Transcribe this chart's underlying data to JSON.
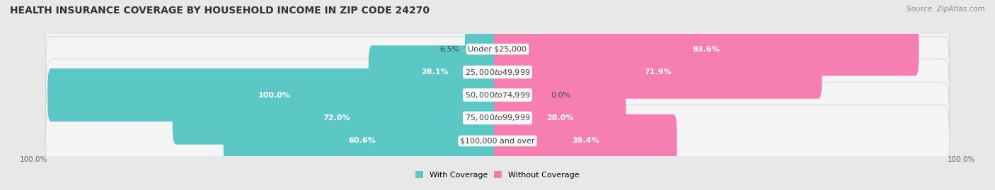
{
  "title": "HEALTH INSURANCE COVERAGE BY HOUSEHOLD INCOME IN ZIP CODE 24270",
  "source": "Source: ZipAtlas.com",
  "categories": [
    "Under $25,000",
    "$25,000 to $49,999",
    "$50,000 to $74,999",
    "$75,000 to $99,999",
    "$100,000 and over"
  ],
  "with_coverage": [
    6.5,
    28.1,
    100.0,
    72.0,
    60.6
  ],
  "without_coverage": [
    93.6,
    71.9,
    0.0,
    28.0,
    39.4
  ],
  "color_with": "#5BC8C5",
  "color_without": "#F77EB0",
  "color_without_light": "#F9AECB",
  "bg_color": "#e8e8e8",
  "bar_bg_color": "#f5f5f5",
  "title_fontsize": 10,
  "label_fontsize": 8,
  "cat_fontsize": 8,
  "axis_label_fontsize": 7.5,
  "legend_fontsize": 8
}
